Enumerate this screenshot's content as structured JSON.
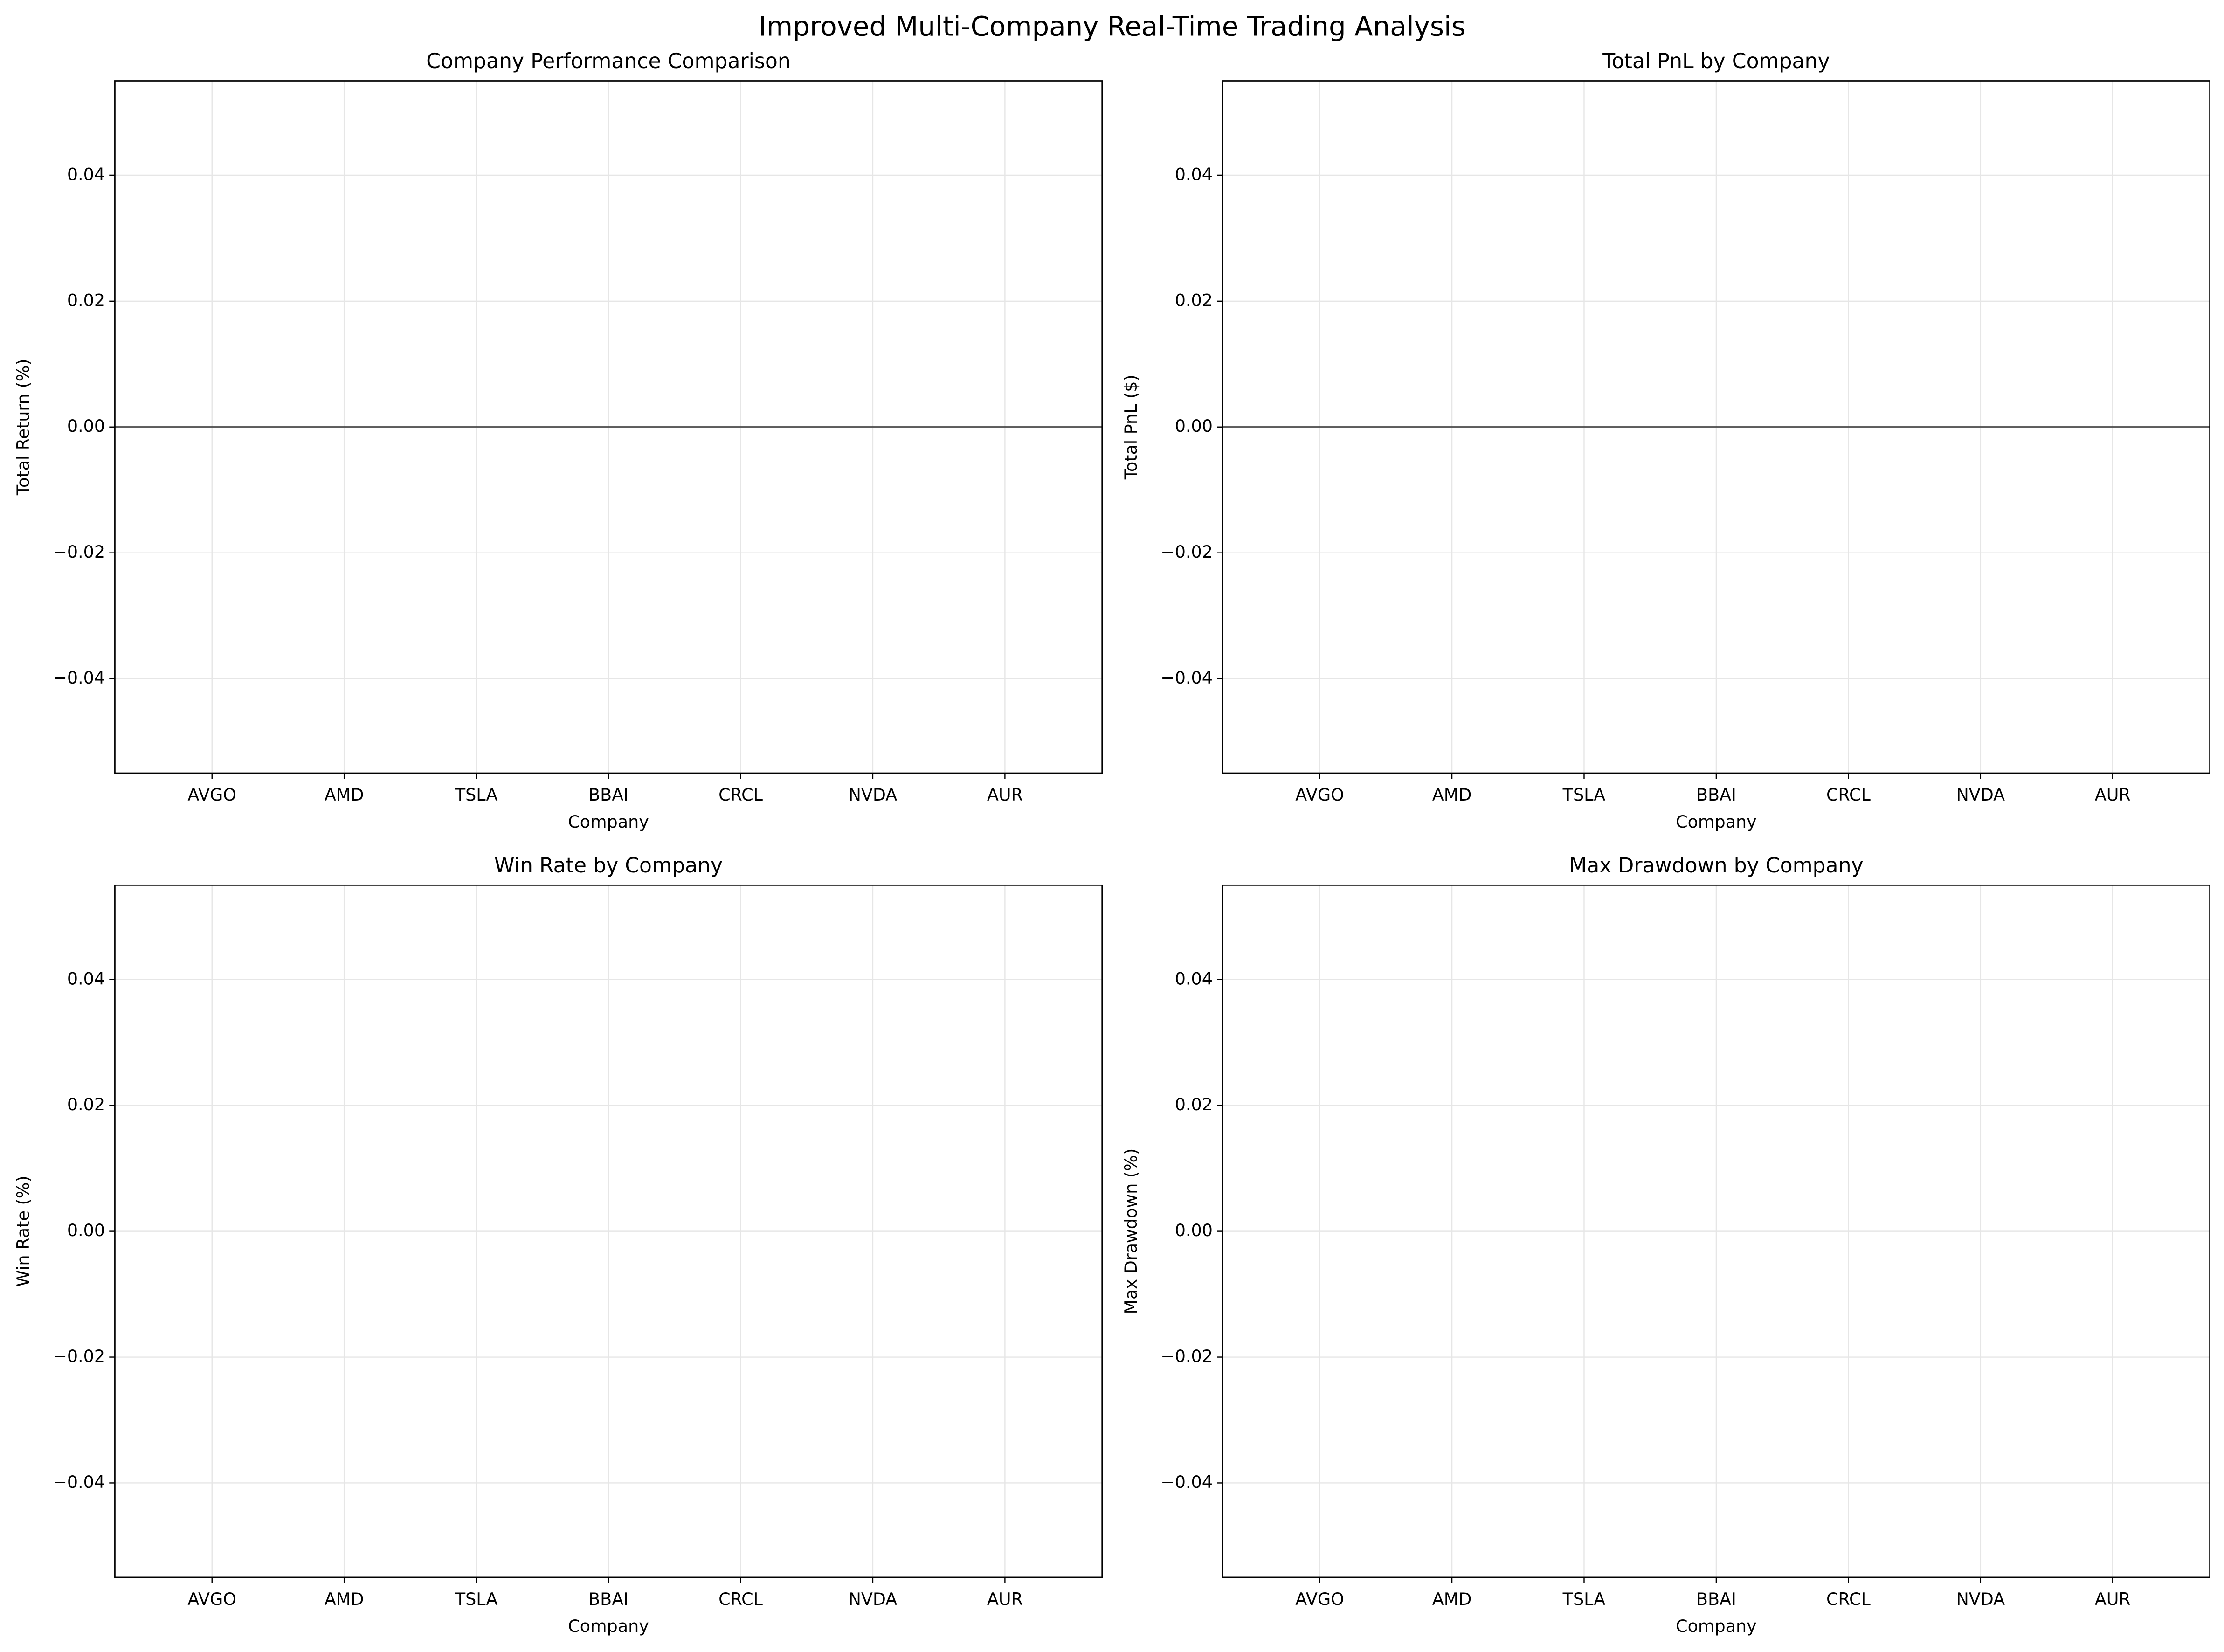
{
  "title": "Improved Multi-Company Real-Time Trading Analysis",
  "chart_data": [
    {
      "type": "bar",
      "title": "Company Performance Comparison",
      "xlabel": "Company",
      "ylabel": "Total Return (%)",
      "categories": [
        "AVGO",
        "AMD",
        "TSLA",
        "BBAI",
        "CRCL",
        "NVDA",
        "AUR"
      ],
      "values": [
        0,
        0,
        0,
        0,
        0,
        0,
        0
      ],
      "ylim": [
        -0.055,
        0.055
      ],
      "yticks": [
        {
          "value": -0.04,
          "label": "−0.04"
        },
        {
          "value": -0.02,
          "label": "−0.02"
        },
        {
          "value": 0,
          "label": "0.00"
        },
        {
          "value": 0.02,
          "label": "0.02"
        },
        {
          "value": 0.04,
          "label": "0.04"
        }
      ],
      "grid": true,
      "reference_line": 0
    },
    {
      "type": "bar",
      "title": "Total PnL by Company",
      "xlabel": "Company",
      "ylabel": "Total PnL ($)",
      "categories": [
        "AVGO",
        "AMD",
        "TSLA",
        "BBAI",
        "CRCL",
        "NVDA",
        "AUR"
      ],
      "values": [
        0,
        0,
        0,
        0,
        0,
        0,
        0
      ],
      "ylim": [
        -0.055,
        0.055
      ],
      "yticks": [
        {
          "value": -0.04,
          "label": "−0.04"
        },
        {
          "value": -0.02,
          "label": "−0.02"
        },
        {
          "value": 0,
          "label": "0.00"
        },
        {
          "value": 0.02,
          "label": "0.02"
        },
        {
          "value": 0.04,
          "label": "0.04"
        }
      ],
      "grid": true,
      "reference_line": 0
    },
    {
      "type": "bar",
      "title": "Win Rate by Company",
      "xlabel": "Company",
      "ylabel": "Win Rate (%)",
      "categories": [
        "AVGO",
        "AMD",
        "TSLA",
        "BBAI",
        "CRCL",
        "NVDA",
        "AUR"
      ],
      "values": [
        0,
        0,
        0,
        0,
        0,
        0,
        0
      ],
      "ylim": [
        -0.055,
        0.055
      ],
      "yticks": [
        {
          "value": -0.04,
          "label": "−0.04"
        },
        {
          "value": -0.02,
          "label": "−0.02"
        },
        {
          "value": 0,
          "label": "0.00"
        },
        {
          "value": 0.02,
          "label": "0.02"
        },
        {
          "value": 0.04,
          "label": "0.04"
        }
      ],
      "grid": true
    },
    {
      "type": "bar",
      "title": "Max Drawdown by Company",
      "xlabel": "Company",
      "ylabel": "Max Drawdown (%)",
      "categories": [
        "AVGO",
        "AMD",
        "TSLA",
        "BBAI",
        "CRCL",
        "NVDA",
        "AUR"
      ],
      "values": [
        0,
        0,
        0,
        0,
        0,
        0,
        0
      ],
      "ylim": [
        -0.055,
        0.055
      ],
      "yticks": [
        {
          "value": -0.04,
          "label": "−0.04"
        },
        {
          "value": -0.02,
          "label": "−0.02"
        },
        {
          "value": 0,
          "label": "0.00"
        },
        {
          "value": 0.02,
          "label": "0.02"
        },
        {
          "value": 0.04,
          "label": "0.04"
        }
      ],
      "grid": true
    }
  ]
}
